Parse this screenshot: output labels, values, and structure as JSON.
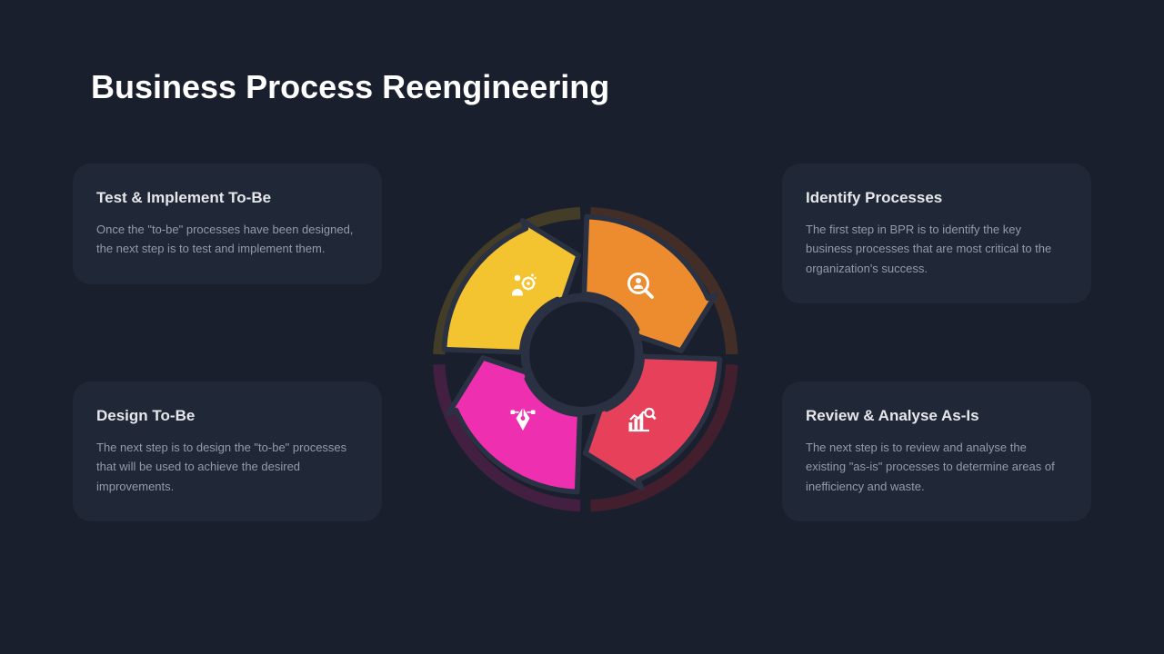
{
  "title": "Business Process Reengineering",
  "background_color": "#1a1f2e",
  "card_background": "rgba(40,48,65,0.45)",
  "cards": {
    "top_left": {
      "title": "Test & Implement To-Be",
      "desc": "Once the \"to-be\" processes have been designed, the next step is to test and implement them."
    },
    "top_right": {
      "title": "Identify Processes",
      "desc": "The first step in BPR is to identify the key business processes that are most critical to the organization's success."
    },
    "bottom_left": {
      "title": "Design To-Be",
      "desc": "The next step is to design the \"to-be\" processes that will be used to achieve the desired improvements."
    },
    "bottom_right": {
      "title": "Review & Analyse As-Is",
      "desc": "The next step is to review and analyse the existing \"as-is\" processes to determine areas of inefficiency and waste."
    }
  },
  "wheel": {
    "type": "circular-arrow-cycle",
    "segments": 4,
    "outer_radius": 160,
    "inner_radius": 70,
    "gap_deg": 4,
    "stroke_color": "#2a3142",
    "stroke_width": 6,
    "center_hole_fill": "#1a1f2e",
    "shadow_colors": [
      "#6b5a1f",
      "#6b3d1f",
      "#6b1f2d",
      "#6b1f55"
    ],
    "colors": {
      "top_left": "#f4c430",
      "top_right": "#ed8b2f",
      "bottom_right": "#e6405a",
      "bottom_left": "#ed2fb0"
    },
    "icons": {
      "top_left": "people-gear-icon",
      "top_right": "magnify-person-icon",
      "bottom_right": "bar-chart-magnify-icon",
      "bottom_left": "pen-design-icon"
    }
  },
  "typography": {
    "title_fontsize": 36,
    "card_title_fontsize": 17,
    "card_desc_fontsize": 13,
    "title_color": "#ffffff",
    "card_title_color": "#e5e7eb",
    "card_desc_color": "#949ba8"
  }
}
